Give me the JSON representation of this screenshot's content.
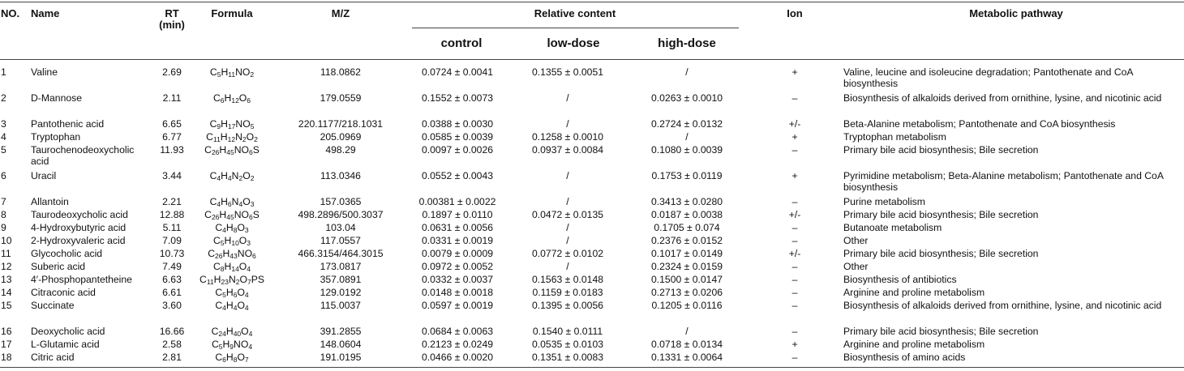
{
  "headers": {
    "no": "NO.",
    "name": "Name",
    "rt_line1": "RT",
    "rt_line2": "(min)",
    "formula": "Formula",
    "mz": "M/Z",
    "relative_content": "Relative content",
    "control": "control",
    "low_dose": "low-dose",
    "high_dose": "high-dose",
    "ion": "Ion",
    "pathway": "Metabolic pathway"
  },
  "rows": [
    {
      "no": "1",
      "name": "Valine",
      "rt": "2.69",
      "formula": "C_{5}H_{11}NO_{2}",
      "mz": "118.0862",
      "control": "0.0724 ± 0.0041",
      "low": "0.1355 ± 0.0051",
      "high": "/",
      "ion": "+",
      "pathway": "Valine, leucine and isoleucine degradation; Pantothenate and CoA biosynthesis"
    },
    {
      "no": "2",
      "name": "D-Mannose",
      "rt": "2.11",
      "formula": "C_{6}H_{12}O_{6}",
      "mz": "179.0559",
      "control": "0.1552 ± 0.0073",
      "low": "/",
      "high": "0.0263 ± 0.0010",
      "ion": "–",
      "pathway": "Biosynthesis of alkaloids derived from ornithine, lysine, and nicotinic acid"
    },
    {
      "no": "3",
      "name": "Pantothenic acid",
      "rt": "6.65",
      "formula": "C_{9}H_{17}NO_{5}",
      "mz": "220.1177/218.1031",
      "control": "0.0388 ± 0.0030",
      "low": "/",
      "high": "0.2724 ± 0.0132",
      "ion": "+/-",
      "pathway": "Beta-Alanine metabolism; Pantothenate and CoA biosynthesis"
    },
    {
      "no": "4",
      "name": "Tryptophan",
      "rt": "6.77",
      "formula": "C_{11}H_{12}N_{2}O_{2}",
      "mz": "205.0969",
      "control": "0.0585 ± 0.0039",
      "low": "0.1258 ± 0.0010",
      "high": "/",
      "ion": "+",
      "pathway": "Tryptophan metabolism"
    },
    {
      "no": "5",
      "name": "Taurochenodeoxycholic acid",
      "rt": "11.93",
      "formula": "C_{26}H_{45}NO_{6}S",
      "mz": "498.29",
      "control": "0.0097 ± 0.0026",
      "low": "0.0937 ± 0.0084",
      "high": "0.1080 ± 0.0039",
      "ion": "–",
      "pathway": "Primary bile acid biosynthesis; Bile secretion"
    },
    {
      "no": "6",
      "name": "Uracil",
      "rt": "3.44",
      "formula": "C_{4}H_{4}N_{2}O_{2}",
      "mz": "113.0346",
      "control": "0.0552 ± 0.0043",
      "low": "/",
      "high": "0.1753 ± 0.0119",
      "ion": "+",
      "pathway": "Pyrimidine metabolism; Beta-Alanine metabolism; Pantothenate and CoA biosynthesis"
    },
    {
      "no": "7",
      "name": "Allantoin",
      "rt": "2.21",
      "formula": "C_{4}H_{6}N_{4}O_{3}",
      "mz": "157.0365",
      "control": "0.00381 ± 0.0022",
      "low": "/",
      "high": "0.3413 ± 0.0280",
      "ion": "–",
      "pathway": "Purine metabolism"
    },
    {
      "no": "8",
      "name": "Taurodeoxycholic acid",
      "rt": "12.88",
      "formula": "C_{26}H_{45}NO_{6}S",
      "mz": "498.2896/500.3037",
      "control": "0.1897 ± 0.0110",
      "low": "0.0472 ± 0.0135",
      "high": "0.0187 ± 0.0038",
      "ion": "+/-",
      "pathway": "Primary bile acid biosynthesis; Bile secretion"
    },
    {
      "no": "9",
      "name": "4-Hydroxybutyric acid",
      "rt": "5.11",
      "formula": "C_{4}H_{8}O_{3}",
      "mz": "103.04",
      "control": "0.0631 ± 0.0056",
      "low": "/",
      "high": "0.1705 ± 0.074",
      "ion": "–",
      "pathway": "Butanoate metabolism"
    },
    {
      "no": "10",
      "name": "2-Hydroxyvaleric acid",
      "rt": "7.09",
      "formula": "C_{5}H_{10}O_{3}",
      "mz": "117.0557",
      "control": "0.0331 ± 0.0019",
      "low": "/",
      "high": "0.2376 ± 0.0152",
      "ion": "–",
      "pathway": "Other"
    },
    {
      "no": "11",
      "name": "Glycocholic acid",
      "rt": "10.73",
      "formula": "C_{26}H_{43}NO_{6}",
      "mz": "466.3154/464.3015",
      "control": "0.0079 ± 0.0009",
      "low": "0.0772 ± 0.0102",
      "high": "0.1017 ± 0.0149",
      "ion": "+/-",
      "pathway": "Primary bile acid biosynthesis; Bile secretion"
    },
    {
      "no": "12",
      "name": "Suberic acid",
      "rt": "7.49",
      "formula": "C_{8}H_{14}O_{4}",
      "mz": "173.0817",
      "control": "0.0972 ± 0.0052",
      "low": "/",
      "high": "0.2324 ± 0.0159",
      "ion": "–",
      "pathway": "Other"
    },
    {
      "no": "13",
      "name": "4′-Phosphopantetheine",
      "rt": "6.63",
      "formula": "C_{11}H_{23}N_{2}O_{7}PS",
      "mz": "357.0891",
      "control": "0.0332 ± 0.0037",
      "low": "0.1563 ± 0.0148",
      "high": "0.1500 ± 0.0147",
      "ion": "–",
      "pathway": "Biosynthesis of antibiotics"
    },
    {
      "no": "14",
      "name": "Citraconic acid",
      "rt": "6.61",
      "formula": "C_{5}H_{6}O_{4}",
      "mz": "129.0192",
      "control": "0.0148 ± 0.0018",
      "low": "0.1159 ± 0.0183",
      "high": "0.2713 ± 0.0206",
      "ion": "–",
      "pathway": "Arginine and proline metabolism"
    },
    {
      "no": "15",
      "name": "Succinate",
      "rt": "3.60",
      "formula": "C_{4}H_{4}O_{4}",
      "mz": "115.0037",
      "control": "0.0597 ± 0.0019",
      "low": "0.1395 ± 0.0056",
      "high": "0.1205 ± 0.0116",
      "ion": "–",
      "pathway": "Biosynthesis of alkaloids derived from ornithine, lysine, and nicotinic acid"
    },
    {
      "no": "16",
      "name": "Deoxycholic acid",
      "rt": "16.66",
      "formula": "C_{24}H_{40}O_{4}",
      "mz": "391.2855",
      "control": "0.0684 ± 0.0063",
      "low": "0.1540 ± 0.0111",
      "high": "/",
      "ion": "–",
      "pathway": "Primary bile acid biosynthesis; Bile secretion"
    },
    {
      "no": "17",
      "name": "L-Glutamic acid",
      "rt": "2.58",
      "formula": "C_{5}H_{9}NO_{4}",
      "mz": "148.0604",
      "control": "0.2123 ± 0.0249",
      "low": "0.0535 ± 0.0103",
      "high": "0.0718 ± 0.0134",
      "ion": "+",
      "pathway": "Arginine and proline metabolism"
    },
    {
      "no": "18",
      "name": "Citric acid",
      "rt": "2.81",
      "formula": "C_{6}H_{8}O_{7}",
      "mz": "191.0195",
      "control": "0.0466 ± 0.0020",
      "low": "0.1351 ± 0.0083",
      "high": "0.1331 ± 0.0064",
      "ion": "–",
      "pathway": "Biosynthesis of amino acids"
    }
  ]
}
